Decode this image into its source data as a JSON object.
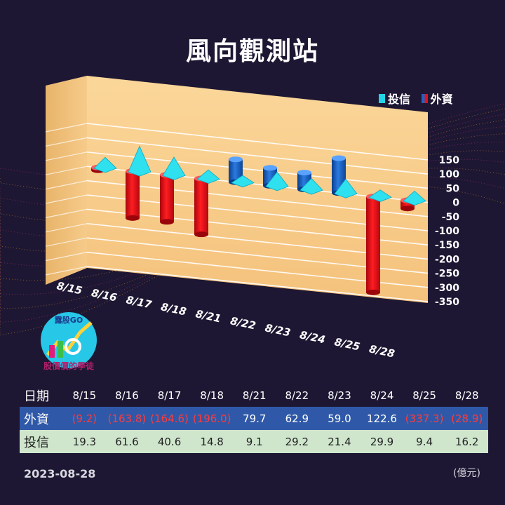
{
  "title": "風向觀測站",
  "legend": {
    "trust": "投信",
    "foreign": "外資",
    "trust_color": "#22d4e6",
    "foreign_color": "#1f62c4",
    "negative_color": "#e3121a"
  },
  "chart_data": {
    "type": "bar",
    "categories": [
      "8/15",
      "8/16",
      "8/17",
      "8/18",
      "8/21",
      "8/22",
      "8/23",
      "8/24",
      "8/25",
      "8/28"
    ],
    "series": [
      {
        "name": "外資",
        "values": [
          -9.2,
          -163.8,
          -164.6,
          -196.0,
          79.7,
          62.9,
          59.0,
          122.6,
          -337.3,
          -28.9
        ]
      },
      {
        "name": "投信",
        "values": [
          19.3,
          61.6,
          40.6,
          14.8,
          9.1,
          29.2,
          21.4,
          29.9,
          9.4,
          16.2
        ]
      }
    ],
    "y_ticks": [
      "150",
      "100",
      "50",
      "0",
      "-50",
      "-100",
      "-150",
      "-200",
      "-250",
      "-300",
      "-350"
    ],
    "ylim": [
      -350,
      150
    ],
    "grid": true,
    "legend_position": "top-right"
  },
  "table": {
    "date_label": "日期",
    "foreign_label": "外資",
    "trust_label": "投信",
    "dates": [
      "8/15",
      "8/16",
      "8/17",
      "8/18",
      "8/21",
      "8/22",
      "8/23",
      "8/24",
      "8/25",
      "8/28"
    ],
    "foreign_values": [
      "(9.2)",
      "(163.8)",
      "(164.6)",
      "(196.0)",
      "79.7",
      "62.9",
      "59.0",
      "122.6",
      "(337.3)",
      "(28.9)"
    ],
    "trust_values": [
      "19.3",
      "61.6",
      "40.6",
      "14.8",
      "9.1",
      "29.2",
      "21.4",
      "29.9",
      "9.4",
      "16.2"
    ]
  },
  "logo": {
    "text": "露股GO",
    "subtitle": "股價價的學徒"
  },
  "footer": {
    "date": "2023-08-28",
    "unit": "(億元)"
  }
}
